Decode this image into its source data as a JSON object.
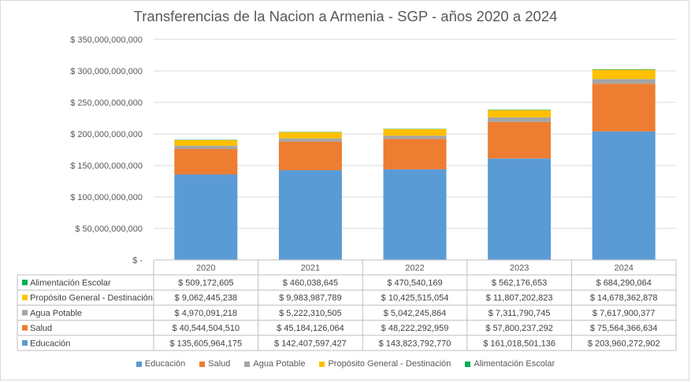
{
  "chart_data": {
    "type": "bar",
    "stacked": true,
    "title": "Transferencias  de la Nacion a Armenia - SGP - años 2020 a 2024",
    "categories": [
      "2020",
      "2021",
      "2022",
      "2023",
      "2024"
    ],
    "ylim": [
      0,
      350000000000
    ],
    "yticks": [
      "$ 350,000,000,000",
      "$ 300,000,000,000",
      "$ 250,000,000,000",
      "$ 200,000,000,000",
      "$ 150,000,000,000",
      "$ 100,000,000,000",
      "$ 50,000,000,000",
      "$ -"
    ],
    "grid": true,
    "legend_position": "bottom",
    "series": [
      {
        "name": "Educación",
        "color": "#5b9bd5",
        "values": [
          135605964175,
          142407597427,
          143823792770,
          161018501136,
          203960272902
        ],
        "labels": [
          "$ 135,605,964,175",
          "$ 142,407,597,427",
          "$ 143,823,792,770",
          "$ 161,018,501,136",
          "$ 203,960,272,902"
        ]
      },
      {
        "name": "Salud",
        "color": "#ed7d31",
        "values": [
          40544504510,
          45184126064,
          48222292959,
          57800237292,
          75564366634
        ],
        "labels": [
          "$ 40,544,504,510",
          "$ 45,184,126,064",
          "$ 48,222,292,959",
          "$ 57,800,237,292",
          "$ 75,564,366,634"
        ]
      },
      {
        "name": "Agua Potable",
        "color": "#a5a5a5",
        "values": [
          4970091218,
          5222310505,
          5042245864,
          7311790745,
          7617900377
        ],
        "labels": [
          "$ 4,970,091,218",
          "$ 5,222,310,505",
          "$ 5,042,245,864",
          "$ 7,311,790,745",
          "$ 7,617,900,377"
        ]
      },
      {
        "name": "Propósito General - Destinación",
        "color": "#ffc000",
        "values": [
          9062445238,
          9983987789,
          10425515054,
          11807202823,
          14678362878
        ],
        "labels": [
          "$ 9,062,445,238",
          "$ 9,983,987,789",
          "$ 10,425,515,054",
          "$ 11,807,202,823",
          "$ 14,678,362,878"
        ]
      },
      {
        "name": "Alimentación Escolar",
        "color": "#00b050",
        "values": [
          509172605,
          460038645,
          470540169,
          562176653,
          684290064
        ],
        "labels": [
          "$ 509,172,605",
          "$ 460,038,645",
          "$ 470,540,169",
          "$ 562,176,653",
          "$ 684,290,064"
        ]
      }
    ]
  }
}
